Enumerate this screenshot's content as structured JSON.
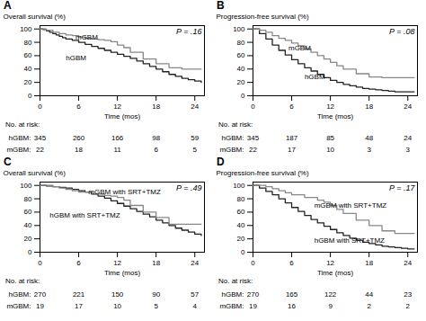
{
  "chart_data": [
    {
      "type": "step",
      "title": "A",
      "xlabel": "Time (mos)",
      "ylabel": "Overall survival (%)",
      "p_value": "P = .16",
      "xlim": [
        0,
        25.5
      ],
      "ylim": [
        0,
        105
      ],
      "xticks": [
        0,
        6,
        12,
        18,
        24
      ],
      "yticks": [
        0,
        20,
        40,
        60,
        80,
        100
      ],
      "grid": false,
      "series": [
        {
          "name": "hGBM",
          "color": "#222222",
          "x": [
            0,
            0.5,
            1,
            1.5,
            2,
            2.5,
            3,
            3.5,
            4,
            5,
            6,
            7,
            8,
            9,
            10,
            11,
            12,
            13,
            14,
            15,
            16,
            17,
            18,
            19,
            20,
            21,
            22,
            23,
            24,
            25
          ],
          "values": [
            100,
            99,
            97,
            95,
            93,
            91,
            89,
            87,
            85,
            83,
            80,
            77,
            74,
            71,
            68,
            65,
            62,
            59,
            56,
            52,
            48,
            44,
            40,
            36,
            32,
            29,
            26,
            24,
            22,
            20
          ]
        },
        {
          "name": "mGBM",
          "color": "#888888",
          "x": [
            0,
            1,
            2,
            3,
            4,
            5,
            6,
            7,
            8,
            9,
            10,
            11,
            12,
            13,
            14,
            16,
            18,
            20,
            22,
            24,
            25
          ],
          "values": [
            100,
            98,
            95,
            93,
            91,
            90,
            88,
            86,
            85,
            84,
            83,
            81,
            76,
            72,
            65,
            55,
            48,
            42,
            40,
            40,
            40
          ]
        }
      ],
      "annotations": [
        {
          "text": "hGBM",
          "x": 4.0,
          "y": 57
        },
        {
          "text": "mGBM",
          "x": 5.5,
          "y": 88
        }
      ],
      "at_risk": {
        "label": "No. at risk:",
        "rows": [
          {
            "name": "hGBM:",
            "values": [
              345,
              260,
              166,
              98,
              59
            ]
          },
          {
            "name": "mGBM:",
            "values": [
              22,
              18,
              11,
              6,
              5
            ]
          }
        ]
      }
    },
    {
      "type": "step",
      "title": "B",
      "xlabel": "Time (mos)",
      "ylabel": "Progression-free survival (%)",
      "p_value": "P = .08",
      "xlim": [
        0,
        25.5
      ],
      "ylim": [
        0,
        105
      ],
      "xticks": [
        0,
        6,
        12,
        18,
        24
      ],
      "yticks": [
        0,
        20,
        40,
        60,
        80,
        100
      ],
      "grid": false,
      "series": [
        {
          "name": "hGBM",
          "color": "#222222",
          "x": [
            0,
            1,
            2,
            3,
            4,
            5,
            6,
            7,
            8,
            9,
            10,
            11,
            12,
            13,
            14,
            15,
            16,
            17,
            18,
            19,
            20,
            21,
            22,
            23,
            24,
            25
          ],
          "values": [
            100,
            93,
            85,
            76,
            68,
            61,
            54,
            48,
            42,
            37,
            32,
            27,
            23,
            20,
            17,
            15,
            13,
            11,
            10,
            9,
            8,
            7,
            6,
            6,
            6,
            6
          ]
        },
        {
          "name": "mGBM",
          "color": "#888888",
          "x": [
            0,
            1,
            2,
            3,
            4,
            5,
            6,
            7,
            8,
            9,
            10,
            11,
            12,
            13,
            14,
            16,
            18,
            20,
            22,
            24,
            25
          ],
          "values": [
            100,
            98,
            95,
            90,
            86,
            83,
            79,
            75,
            70,
            65,
            60,
            55,
            50,
            45,
            40,
            33,
            28,
            27,
            27,
            27,
            27
          ]
        }
      ],
      "annotations": [
        {
          "text": "hGBM",
          "x": 8.0,
          "y": 28
        },
        {
          "text": "mGBM",
          "x": 5.5,
          "y": 72
        }
      ],
      "at_risk": {
        "label": "No. at risk:",
        "rows": [
          {
            "name": "hGBM:",
            "values": [
              345,
              187,
              85,
              48,
              24
            ]
          },
          {
            "name": "mGBM:",
            "values": [
              22,
              17,
              10,
              3,
              3
            ]
          }
        ]
      }
    },
    {
      "type": "step",
      "title": "C",
      "xlabel": "Time (mos)",
      "ylabel": "Overall survival (%)",
      "p_value": "P = .49",
      "xlim": [
        0,
        25.5
      ],
      "ylim": [
        0,
        105
      ],
      "xticks": [
        0,
        6,
        12,
        18,
        24
      ],
      "yticks": [
        0,
        20,
        40,
        60,
        80,
        100
      ],
      "grid": false,
      "series": [
        {
          "name": "hGBM with SRT+TMZ",
          "color": "#222222",
          "x": [
            0,
            1,
            2,
            3,
            4,
            5,
            6,
            7,
            8,
            9,
            10,
            11,
            12,
            13,
            14,
            15,
            16,
            17,
            18,
            19,
            20,
            21,
            22,
            23,
            24,
            25
          ],
          "values": [
            100,
            99,
            98,
            97,
            96,
            94,
            92,
            90,
            87,
            84,
            81,
            77,
            73,
            69,
            65,
            61,
            57,
            53,
            48,
            44,
            40,
            36,
            33,
            30,
            27,
            25
          ]
        },
        {
          "name": "mGBM with SRT+TMZ",
          "color": "#888888",
          "x": [
            0,
            1,
            2,
            3,
            4,
            5,
            6,
            8,
            10,
            11,
            12,
            13,
            14,
            16,
            18,
            20,
            22,
            24,
            25
          ],
          "values": [
            100,
            100,
            98,
            96,
            94,
            92,
            90,
            87,
            85,
            84,
            82,
            78,
            70,
            60,
            52,
            42,
            42,
            42,
            42
          ]
        }
      ],
      "annotations": [
        {
          "text": "hGBM with SRT+TMZ",
          "x": 1.5,
          "y": 55
        },
        {
          "text": "mGBM with SRT+TMZ",
          "x": 7.5,
          "y": 90
        }
      ],
      "at_risk": {
        "label": "No. at risk:",
        "rows": [
          {
            "name": "hGBM:",
            "values": [
              270,
              221,
              150,
              90,
              57
            ]
          },
          {
            "name": "mGBM:",
            "values": [
              19,
              17,
              10,
              5,
              4
            ]
          }
        ]
      }
    },
    {
      "type": "step",
      "title": "D",
      "xlabel": "Time (mos)",
      "ylabel": "Progression-free survival (%)",
      "p_value": "P = .17",
      "xlim": [
        0,
        25.5
      ],
      "ylim": [
        0,
        105
      ],
      "xticks": [
        0,
        6,
        12,
        18,
        24
      ],
      "yticks": [
        0,
        20,
        40,
        60,
        80,
        100
      ],
      "grid": false,
      "series": [
        {
          "name": "hGBM with SRT+TMZ",
          "color": "#222222",
          "x": [
            0,
            1,
            2,
            3,
            4,
            5,
            6,
            7,
            8,
            9,
            10,
            11,
            12,
            13,
            14,
            15,
            16,
            17,
            18,
            19,
            20,
            21,
            22,
            23,
            24,
            25
          ],
          "values": [
            100,
            96,
            91,
            86,
            80,
            74,
            67,
            61,
            55,
            49,
            44,
            39,
            34,
            29,
            25,
            21,
            18,
            15,
            13,
            11,
            9,
            8,
            7,
            6,
            5,
            5
          ]
        },
        {
          "name": "mGBM with SRT+TMZ",
          "color": "#888888",
          "x": [
            0,
            1,
            2,
            3,
            4,
            5,
            6,
            8,
            10,
            11,
            12,
            13,
            14,
            16,
            18,
            20,
            22,
            24,
            25
          ],
          "values": [
            100,
            100,
            98,
            95,
            92,
            89,
            86,
            82,
            78,
            75,
            70,
            64,
            58,
            48,
            40,
            32,
            28,
            28,
            28
          ]
        }
      ],
      "annotations": [
        {
          "text": "hGBM with SRT+TMZ",
          "x": 9.5,
          "y": 18
        },
        {
          "text": "mGBM with SRT+TMZ",
          "x": 9.5,
          "y": 70
        }
      ],
      "at_risk": {
        "label": "No. at risk:",
        "rows": [
          {
            "name": "hGBM:",
            "values": [
              270,
              165,
              122,
              44,
              23
            ]
          },
          {
            "name": "mGBM:",
            "values": [
              19,
              16,
              9,
              2,
              2
            ]
          }
        ]
      }
    }
  ]
}
